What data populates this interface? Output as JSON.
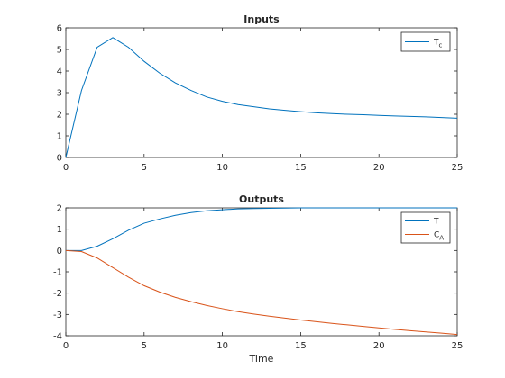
{
  "chart_data": [
    {
      "type": "line",
      "title": "Inputs",
      "xlabel": "",
      "ylabel": "",
      "xlim": [
        0,
        25
      ],
      "ylim": [
        0,
        6
      ],
      "xticks": [
        0,
        5,
        10,
        15,
        20,
        25
      ],
      "yticks": [
        0,
        1,
        2,
        3,
        4,
        5,
        6
      ],
      "grid": false,
      "legend_position": "top-right",
      "series": [
        {
          "name": "T",
          "name_sub": "c",
          "color": "#0072bd",
          "x": [
            0,
            1,
            2,
            3,
            4,
            5,
            6,
            7,
            8,
            9,
            10,
            11,
            12,
            13,
            14,
            15,
            16,
            17,
            18,
            19,
            20,
            21,
            22,
            23,
            24,
            25
          ],
          "y": [
            0,
            3.1,
            5.1,
            5.55,
            5.1,
            4.45,
            3.9,
            3.45,
            3.1,
            2.8,
            2.6,
            2.45,
            2.35,
            2.25,
            2.18,
            2.12,
            2.07,
            2.03,
            2.0,
            1.98,
            1.95,
            1.92,
            1.9,
            1.88,
            1.85,
            1.82
          ]
        }
      ]
    },
    {
      "type": "line",
      "title": "Outputs",
      "xlabel": "Time",
      "ylabel": "",
      "xlim": [
        0,
        25
      ],
      "ylim": [
        -4,
        2
      ],
      "xticks": [
        0,
        5,
        10,
        15,
        20,
        25
      ],
      "yticks": [
        -4,
        -3,
        -2,
        -1,
        0,
        1,
        2
      ],
      "grid": false,
      "legend_position": "top-right",
      "series": [
        {
          "name": "T",
          "name_sub": "",
          "color": "#0072bd",
          "x": [
            0,
            1,
            2,
            3,
            4,
            5,
            6,
            7,
            8,
            9,
            10,
            11,
            12,
            13,
            14,
            15,
            16,
            17,
            18,
            19,
            20,
            21,
            22,
            23,
            24,
            25
          ],
          "y": [
            0,
            0,
            0.2,
            0.55,
            0.95,
            1.28,
            1.48,
            1.65,
            1.78,
            1.86,
            1.91,
            1.95,
            1.97,
            1.98,
            1.99,
            2.0,
            2.0,
            2.0,
            2.0,
            2.0,
            2.0,
            2.0,
            2.0,
            2.0,
            2.0,
            2.0
          ]
        },
        {
          "name": "C",
          "name_sub": "A",
          "color": "#d95319",
          "x": [
            0,
            1,
            2,
            3,
            4,
            5,
            6,
            7,
            8,
            9,
            10,
            11,
            12,
            13,
            14,
            15,
            16,
            17,
            18,
            19,
            20,
            21,
            22,
            23,
            24,
            25
          ],
          "y": [
            0,
            -0.05,
            -0.35,
            -0.8,
            -1.25,
            -1.65,
            -1.95,
            -2.2,
            -2.4,
            -2.58,
            -2.73,
            -2.87,
            -2.98,
            -3.08,
            -3.17,
            -3.26,
            -3.34,
            -3.42,
            -3.49,
            -3.56,
            -3.63,
            -3.7,
            -3.76,
            -3.82,
            -3.88,
            -3.94
          ]
        }
      ]
    }
  ]
}
